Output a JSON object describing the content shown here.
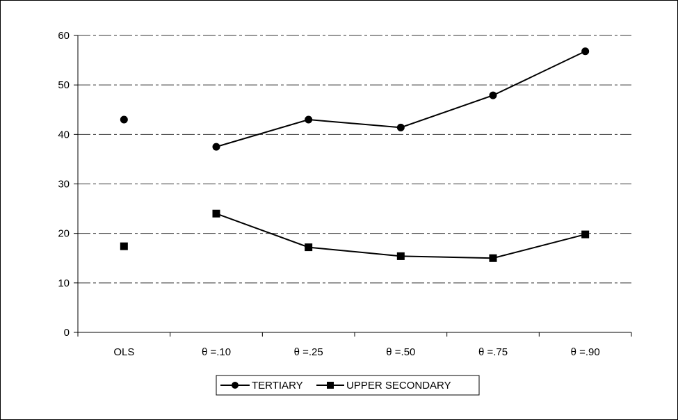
{
  "chart_data": {
    "type": "line",
    "categories": [
      "OLS",
      "θ =.10",
      "θ =.25",
      "θ =.50",
      "θ =.75",
      "θ =.90"
    ],
    "ylim": [
      0,
      60
    ],
    "yticks": [
      0,
      10,
      20,
      30,
      40,
      50,
      60
    ],
    "grid": "horizontal-dashdot",
    "legend_position": "bottom-center",
    "series": [
      {
        "name": "TERTIARY",
        "marker": "circle",
        "values": [
          43.0,
          37.5,
          43.0,
          41.4,
          47.9,
          56.8
        ],
        "connected_from_index": 1,
        "color": "#000000"
      },
      {
        "name": "UPPER SECONDARY",
        "marker": "square",
        "values": [
          17.4,
          24.0,
          17.2,
          15.4,
          15.0,
          19.8
        ],
        "connected_from_index": 1,
        "color": "#000000"
      }
    ]
  }
}
